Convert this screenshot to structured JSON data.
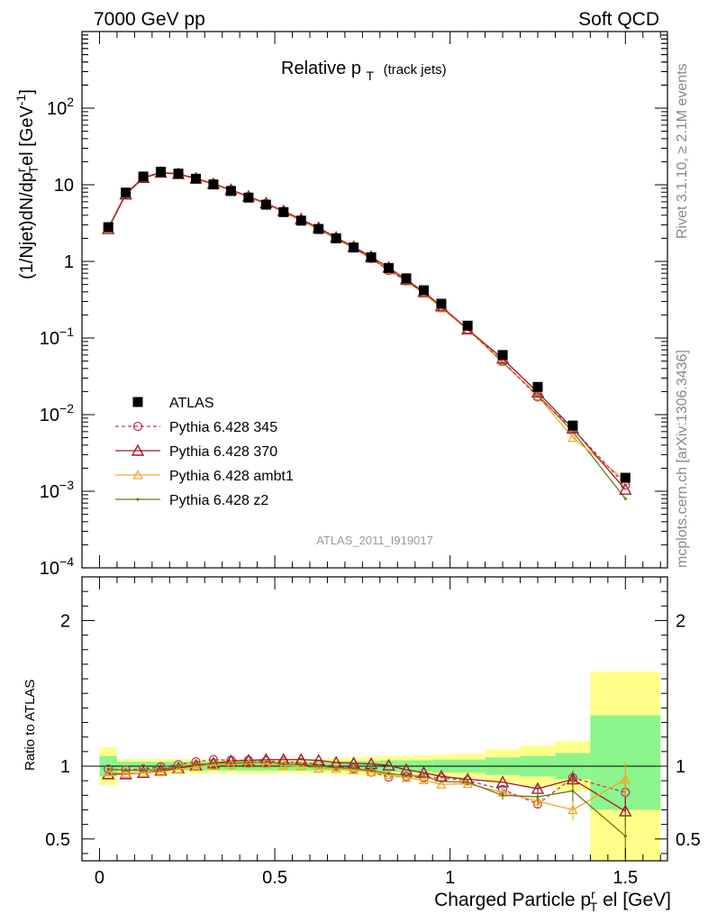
{
  "header": {
    "left": "7000 GeV pp",
    "right": "Soft QCD"
  },
  "side_labels": {
    "rivet": "Rivet 3.1.10, ≥ 2.1M events",
    "mcplots": "mcplots.cern.ch [arXiv:1306.3436]"
  },
  "plot_title": {
    "main": "Relative p",
    "sub": "T",
    "suffix": "(track jets)"
  },
  "watermark": "ATLAS_2011_I919017",
  "colors": {
    "atlas": "#000000",
    "p345": "#c0395a",
    "p370": "#9c1a2e",
    "ambt1": "#f5a623",
    "z2": "#6f7a12",
    "band_outer": "#ffff8a",
    "band_inner": "#8cf58c"
  },
  "chart_data": [
    {
      "type": "scatter",
      "panel": "main",
      "scale": "log",
      "ylabel": "(1/Njet)dN/dp^r_T el [GeV^-1]",
      "ylim": [
        0.0001,
        1000
      ],
      "xlim": [
        -0.05,
        1.62
      ],
      "yticks": [
        {
          "value": 0.0001,
          "base": "10",
          "exp": "−4"
        },
        {
          "value": 0.001,
          "base": "10",
          "exp": "−3"
        },
        {
          "value": 0.01,
          "base": "10",
          "exp": "−2"
        },
        {
          "value": 0.1,
          "base": "10",
          "exp": "−1"
        },
        {
          "value": 1,
          "base": "1",
          "exp": ""
        },
        {
          "value": 10,
          "base": "10",
          "exp": ""
        },
        {
          "value": 100,
          "base": "10",
          "exp": "2"
        }
      ],
      "x": [
        0.025,
        0.075,
        0.125,
        0.175,
        0.225,
        0.275,
        0.325,
        0.375,
        0.425,
        0.475,
        0.525,
        0.575,
        0.625,
        0.675,
        0.725,
        0.775,
        0.825,
        0.875,
        0.925,
        0.975,
        1.05,
        1.15,
        1.25,
        1.35,
        1.5
      ],
      "series": [
        {
          "name": "ATLAS",
          "key": "atlas",
          "marker": "square",
          "values": [
            2.8,
            7.9,
            12.8,
            14.8,
            14.0,
            12.0,
            10.1,
            8.3,
            6.8,
            5.5,
            4.4,
            3.4,
            2.65,
            2.0,
            1.52,
            1.13,
            0.82,
            0.6,
            0.42,
            0.28,
            0.145,
            0.06,
            0.023,
            0.0072,
            0.0015
          ]
        },
        {
          "name": "Pythia 6.428 345",
          "key": "p345",
          "marker": "circle",
          "dash": "4,3",
          "values": [
            2.75,
            7.7,
            12.5,
            14.6,
            14.0,
            12.2,
            10.4,
            8.6,
            7.0,
            5.7,
            4.5,
            3.5,
            2.7,
            2.02,
            1.5,
            1.09,
            0.76,
            0.56,
            0.39,
            0.26,
            0.13,
            0.05,
            0.017,
            0.0066,
            0.0012
          ]
        },
        {
          "name": "Pythia 6.428 370",
          "key": "p370",
          "marker": "triangle",
          "values": [
            2.65,
            7.5,
            12.3,
            14.4,
            13.8,
            12.1,
            10.3,
            8.6,
            7.05,
            5.75,
            4.55,
            3.55,
            2.75,
            2.05,
            1.55,
            1.15,
            0.83,
            0.58,
            0.4,
            0.26,
            0.13,
            0.054,
            0.0195,
            0.0066,
            0.00105
          ]
        },
        {
          "name": "Pythia 6.428 ambt1",
          "key": "ambt1",
          "marker": "triangle-open",
          "values": [
            2.7,
            7.5,
            12.2,
            14.2,
            13.7,
            11.9,
            10.1,
            8.4,
            6.9,
            5.6,
            4.4,
            3.4,
            2.6,
            1.96,
            1.48,
            1.08,
            0.77,
            0.55,
            0.38,
            0.245,
            0.128,
            0.049,
            0.0175,
            0.005,
            0.00137
          ]
        },
        {
          "name": "Pythia 6.428 z2",
          "key": "z2",
          "marker": "dot",
          "values": [
            2.75,
            7.7,
            12.4,
            14.5,
            13.9,
            12.1,
            10.2,
            8.45,
            6.95,
            5.65,
            4.45,
            3.45,
            2.65,
            1.98,
            1.5,
            1.1,
            0.78,
            0.56,
            0.39,
            0.25,
            0.13,
            0.048,
            0.018,
            0.006,
            0.0008
          ]
        }
      ],
      "legend_position": "lower-left"
    },
    {
      "type": "line",
      "panel": "ratio",
      "ylabel": "Ratio to ATLAS",
      "ylim": [
        0.35,
        2.3
      ],
      "xlim": [
        -0.05,
        1.62
      ],
      "xlabel": "Charged Particle p^r_T el [GeV]",
      "xticks": [
        "0",
        "0.5",
        "1",
        "1.5"
      ],
      "yticks": [
        "0.5",
        "1",
        "2"
      ],
      "bands": [
        {
          "x0": 0.0,
          "x1": 0.05,
          "outer": [
            0.87,
            1.13
          ],
          "inner": [
            0.93,
            1.07
          ]
        },
        {
          "x0": 0.05,
          "x1": 0.1,
          "outer": [
            0.95,
            1.05
          ],
          "inner": [
            0.97,
            1.03
          ]
        },
        {
          "x0": 0.1,
          "x1": 0.15,
          "outer": [
            0.95,
            1.05
          ],
          "inner": [
            0.97,
            1.03
          ]
        },
        {
          "x0": 0.15,
          "x1": 0.2,
          "outer": [
            0.95,
            1.05
          ],
          "inner": [
            0.97,
            1.03
          ]
        },
        {
          "x0": 0.2,
          "x1": 0.25,
          "outer": [
            0.95,
            1.05
          ],
          "inner": [
            0.97,
            1.03
          ]
        },
        {
          "x0": 0.25,
          "x1": 0.3,
          "outer": [
            0.95,
            1.05
          ],
          "inner": [
            0.97,
            1.03
          ]
        },
        {
          "x0": 0.3,
          "x1": 0.35,
          "outer": [
            0.95,
            1.05
          ],
          "inner": [
            0.97,
            1.03
          ]
        },
        {
          "x0": 0.35,
          "x1": 0.4,
          "outer": [
            0.95,
            1.05
          ],
          "inner": [
            0.97,
            1.03
          ]
        },
        {
          "x0": 0.4,
          "x1": 0.45,
          "outer": [
            0.95,
            1.05
          ],
          "inner": [
            0.97,
            1.03
          ]
        },
        {
          "x0": 0.45,
          "x1": 0.5,
          "outer": [
            0.95,
            1.05
          ],
          "inner": [
            0.97,
            1.03
          ]
        },
        {
          "x0": 0.5,
          "x1": 0.55,
          "outer": [
            0.95,
            1.05
          ],
          "inner": [
            0.97,
            1.03
          ]
        },
        {
          "x0": 0.55,
          "x1": 0.6,
          "outer": [
            0.95,
            1.05
          ],
          "inner": [
            0.97,
            1.03
          ]
        },
        {
          "x0": 0.6,
          "x1": 0.65,
          "outer": [
            0.95,
            1.05
          ],
          "inner": [
            0.97,
            1.03
          ]
        },
        {
          "x0": 0.65,
          "x1": 0.7,
          "outer": [
            0.945,
            1.055
          ],
          "inner": [
            0.97,
            1.03
          ]
        },
        {
          "x0": 0.7,
          "x1": 0.75,
          "outer": [
            0.94,
            1.06
          ],
          "inner": [
            0.965,
            1.035
          ]
        },
        {
          "x0": 0.75,
          "x1": 0.8,
          "outer": [
            0.935,
            1.065
          ],
          "inner": [
            0.965,
            1.035
          ]
        },
        {
          "x0": 0.8,
          "x1": 0.85,
          "outer": [
            0.93,
            1.07
          ],
          "inner": [
            0.96,
            1.04
          ]
        },
        {
          "x0": 0.85,
          "x1": 0.9,
          "outer": [
            0.93,
            1.07
          ],
          "inner": [
            0.96,
            1.04
          ]
        },
        {
          "x0": 0.9,
          "x1": 0.95,
          "outer": [
            0.925,
            1.075
          ],
          "inner": [
            0.96,
            1.04
          ]
        },
        {
          "x0": 0.95,
          "x1": 1.0,
          "outer": [
            0.92,
            1.08
          ],
          "inner": [
            0.955,
            1.045
          ]
        },
        {
          "x0": 1.0,
          "x1": 1.1,
          "outer": [
            0.915,
            1.085
          ],
          "inner": [
            0.955,
            1.045
          ]
        },
        {
          "x0": 1.1,
          "x1": 1.2,
          "outer": [
            0.885,
            1.115
          ],
          "inner": [
            0.94,
            1.06
          ]
        },
        {
          "x0": 1.2,
          "x1": 1.3,
          "outer": [
            0.86,
            1.14
          ],
          "inner": [
            0.93,
            1.07
          ]
        },
        {
          "x0": 1.3,
          "x1": 1.4,
          "outer": [
            0.83,
            1.17
          ],
          "inner": [
            0.91,
            1.09
          ]
        },
        {
          "x0": 1.4,
          "x1": 1.6,
          "outer": [
            0.35,
            1.65
          ],
          "inner": [
            0.7,
            1.35
          ]
        }
      ],
      "x": [
        0.025,
        0.075,
        0.125,
        0.175,
        0.225,
        0.275,
        0.325,
        0.375,
        0.425,
        0.475,
        0.525,
        0.575,
        0.625,
        0.675,
        0.725,
        0.775,
        0.825,
        0.875,
        0.925,
        0.975,
        1.05,
        1.15,
        1.25,
        1.35,
        1.5
      ],
      "series": [
        {
          "name": "Pythia 6.428 345",
          "key": "p345",
          "marker": "circle",
          "dash": "4,3",
          "values": [
            0.98,
            0.975,
            0.98,
            0.995,
            1.01,
            1.03,
            1.045,
            1.04,
            1.04,
            1.035,
            1.03,
            1.025,
            1.01,
            1.0,
            0.985,
            0.96,
            0.925,
            0.93,
            0.92,
            0.92,
            0.9,
            0.84,
            0.74,
            0.92,
            0.82
          ],
          "err": [
            0,
            0,
            0,
            0,
            0,
            0,
            0,
            0,
            0,
            0,
            0,
            0,
            0,
            0,
            0,
            0,
            0,
            0,
            0,
            0,
            0,
            0,
            0.03,
            0.05,
            0.08
          ]
        },
        {
          "name": "Pythia 6.428 370",
          "key": "p370",
          "marker": "triangle",
          "values": [
            0.945,
            0.945,
            0.955,
            0.97,
            0.985,
            1.005,
            1.02,
            1.035,
            1.04,
            1.045,
            1.045,
            1.045,
            1.04,
            1.025,
            1.02,
            1.015,
            1.005,
            0.975,
            0.955,
            0.93,
            0.91,
            0.89,
            0.845,
            0.91,
            0.69
          ],
          "err": [
            0,
            0,
            0,
            0,
            0,
            0,
            0,
            0,
            0,
            0,
            0,
            0,
            0,
            0,
            0,
            0,
            0,
            0,
            0,
            0,
            0,
            0,
            0.02,
            0.05,
            0.1
          ]
        },
        {
          "name": "Pythia 6.428 ambt1",
          "key": "ambt1",
          "marker": "triangle-open",
          "values": [
            0.96,
            0.95,
            0.955,
            0.96,
            0.98,
            0.995,
            1.005,
            1.01,
            1.015,
            1.015,
            1.005,
            1.0,
            0.985,
            0.985,
            0.975,
            0.96,
            0.94,
            0.92,
            0.905,
            0.875,
            0.88,
            0.82,
            0.76,
            0.7,
            0.91
          ],
          "err": [
            0,
            0,
            0,
            0,
            0,
            0,
            0,
            0,
            0,
            0,
            0,
            0,
            0,
            0,
            0,
            0,
            0,
            0,
            0,
            0,
            0,
            0,
            0.04,
            0.07,
            0.12
          ]
        },
        {
          "name": "Pythia 6.428 z2",
          "key": "z2",
          "marker": "dot",
          "values": [
            0.98,
            0.97,
            0.97,
            0.98,
            0.995,
            1.01,
            1.02,
            1.02,
            1.025,
            1.03,
            1.015,
            1.01,
            1.0,
            0.99,
            0.985,
            0.97,
            0.95,
            0.935,
            0.93,
            0.895,
            0.89,
            0.8,
            0.79,
            0.83,
            0.52
          ],
          "err": [
            0,
            0,
            0,
            0,
            0,
            0,
            0,
            0,
            0,
            0,
            0,
            0,
            0,
            0,
            0,
            0,
            0,
            0,
            0,
            0,
            0.02,
            0.03,
            0.04,
            0.07,
            0.15
          ]
        }
      ]
    }
  ]
}
